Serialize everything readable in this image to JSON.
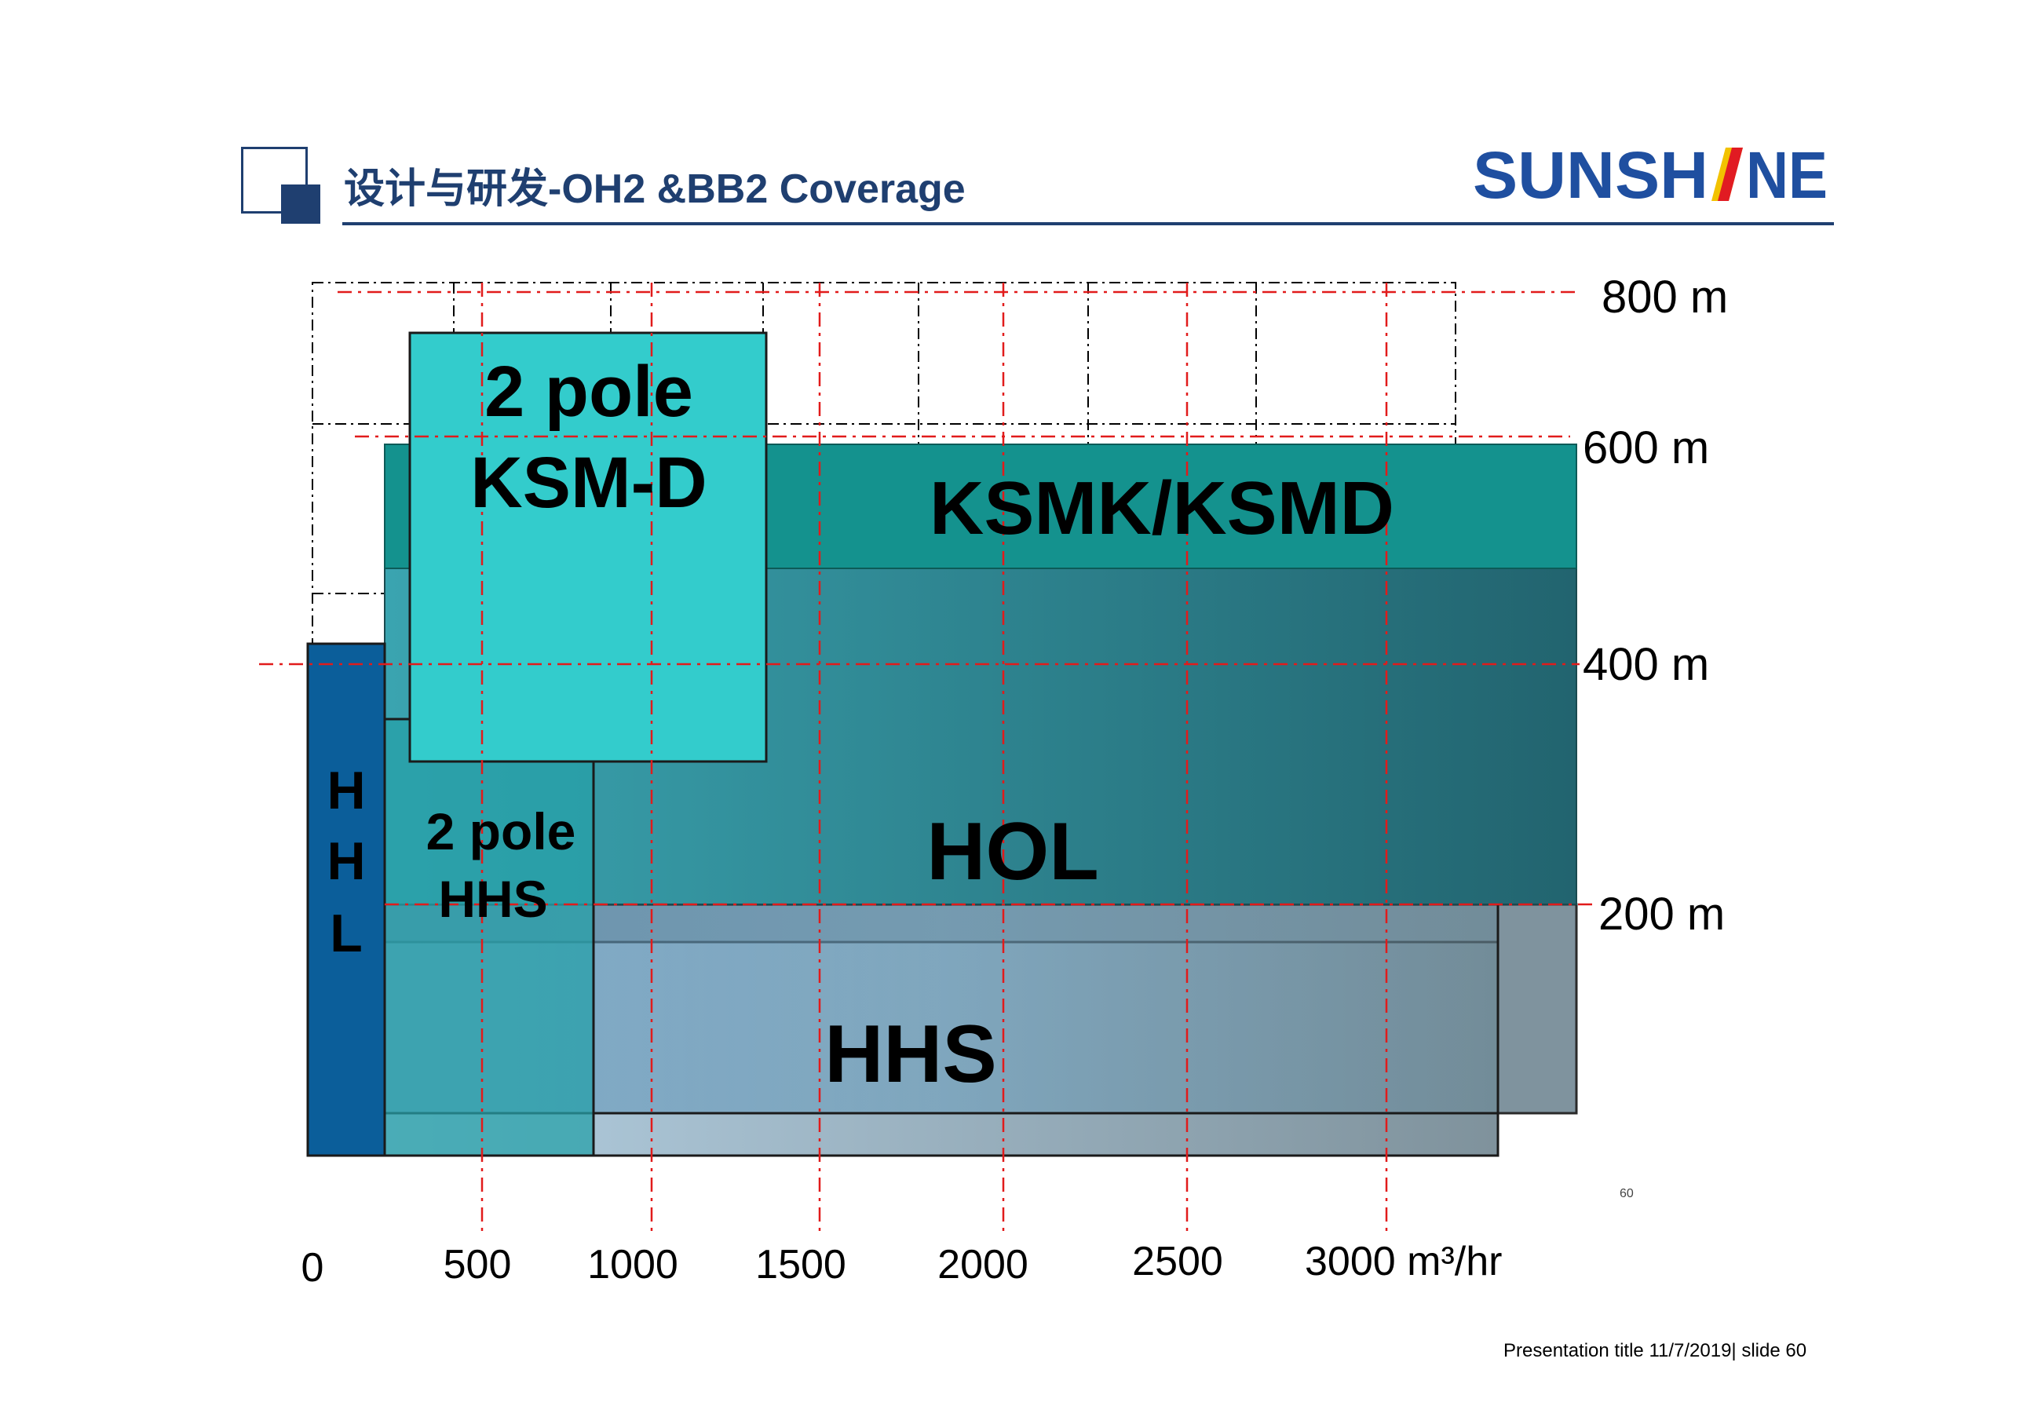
{
  "header": {
    "title": "设计与研发-OH2 &BB2 Coverage",
    "logo_text": "SUNSHINE",
    "logo_color": "#1f4fa0",
    "accent_color": "#1f3f70"
  },
  "diagram": {
    "y_axis_labels": [
      "800 m",
      "600 m",
      "400 m",
      "200 m"
    ],
    "x_axis_labels": [
      "0",
      "500",
      "1000",
      "1500",
      "2000",
      "2500",
      "3000 m³/hr"
    ],
    "regions": [
      {
        "id": "hhs",
        "label": "HHS",
        "color": "#8fb5cc"
      },
      {
        "id": "hol",
        "label": "HOL",
        "color": "#2f8a98"
      },
      {
        "id": "ksmk",
        "label": "KSMK/KSMD",
        "color": "#14928e"
      },
      {
        "id": "ksm-d",
        "label_line1": "2 pole",
        "label_line2": "KSM-D",
        "color": "#33cccc"
      },
      {
        "id": "hhs-2pole",
        "label_line1": "2 pole",
        "label_line2": "HHS",
        "color": "#2aa0a8"
      },
      {
        "id": "hhl",
        "label": "HHL",
        "label_letters": [
          "H",
          "H",
          "L"
        ],
        "color": "#0b5e9a"
      }
    ]
  },
  "page_number": "60",
  "footer": "Presentation title 11/7/2019| slide 60"
}
